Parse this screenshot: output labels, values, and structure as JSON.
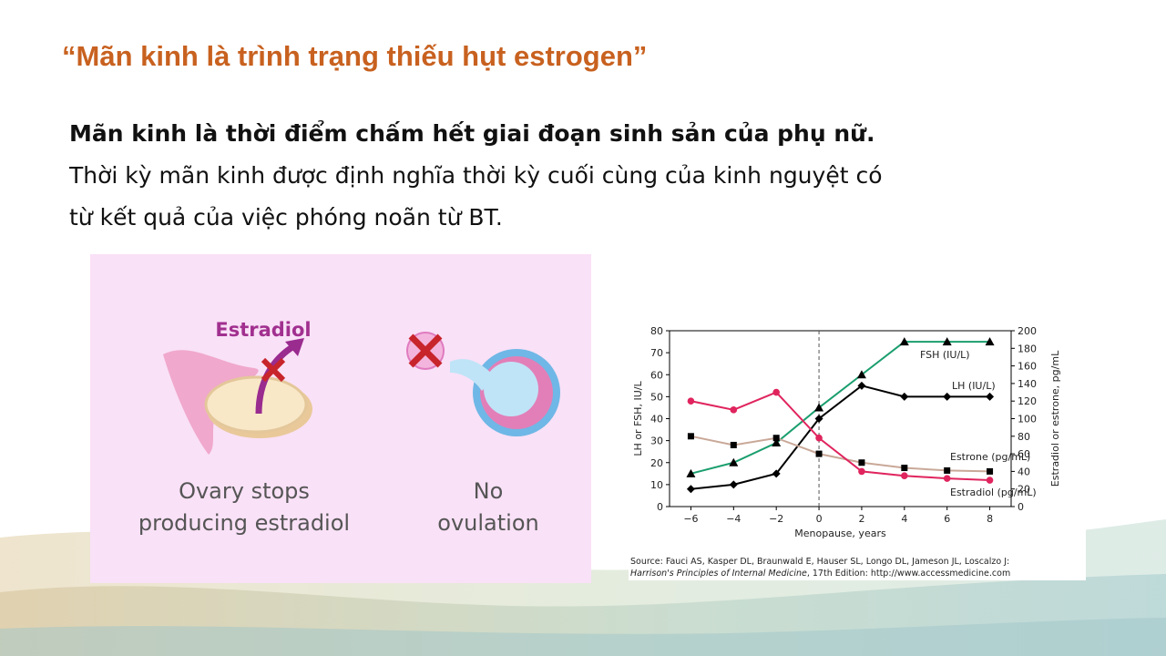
{
  "title": "“Mãn kinh là trình trạng thiếu hụt estrogen”",
  "body": {
    "bold": "Mãn kinh là thời điểm chấm hết giai đoạn sinh sản của phụ nữ.",
    "lines": [
      "Thời kỳ mãn kinh được định nghĩa thời kỳ cuối cùng của kinh nguyệt có",
      "từ kết quả của việc phóng noãn từ BT."
    ]
  },
  "illustration": {
    "hormone": "Estradiol",
    "captions": [
      [
        "Ovary stops",
        "producing estradiol"
      ],
      [
        "No",
        "ovulation"
      ]
    ]
  },
  "chart_data": {
    "type": "line",
    "x": [
      -6,
      -4,
      -2,
      0,
      2,
      4,
      6,
      8
    ],
    "xlim": [
      -7,
      9
    ],
    "xticks": [
      {
        "value": -6,
        "label": "−6"
      },
      {
        "value": -4,
        "label": "−4"
      },
      {
        "value": -2,
        "label": "−2"
      },
      0,
      2,
      4,
      6,
      8
    ],
    "xlabel": "Menopause, years",
    "ylabel": "LH or FSH, IU/L",
    "ylim": [
      0,
      80
    ],
    "yticks": [
      0,
      10,
      20,
      30,
      40,
      50,
      60,
      70,
      80
    ],
    "y2label": "Estradiol or estrone, pg/mL",
    "y2lim": [
      0,
      200
    ],
    "y2ticks": [
      0,
      20,
      40,
      60,
      80,
      100,
      120,
      140,
      160,
      180,
      200
    ],
    "series": [
      {
        "name": "FSH (IU/L)",
        "color": "#1a9e6e",
        "marker": "triangle",
        "values": [
          15,
          20,
          29,
          45,
          60,
          75,
          75,
          75
        ]
      },
      {
        "name": "LH (IU/L)",
        "color": "#000000",
        "marker": "diamond",
        "values": [
          8,
          10,
          15,
          40,
          55,
          50,
          50,
          50
        ]
      },
      {
        "name": "Estrone (pg/mL)",
        "color": "#c9a898",
        "marker": "square",
        "axis": "y2",
        "values": [
          80,
          70,
          78,
          60,
          50,
          44,
          41,
          40
        ]
      },
      {
        "name": "Estradiol (pg/mL)",
        "color": "#e0245e",
        "marker": "circle",
        "axis": "y2",
        "values": [
          120,
          110,
          130,
          78,
          40,
          35,
          32,
          30
        ]
      }
    ],
    "source": [
      "Source: Fauci AS, Kasper DL, Braunwald E, Hauser SL, Longo DL, Jameson JL, Loscalzo J:",
      "Harrison's Principles of Internal Medicine",
      ", 17th Edition: http://www.accessmedicine.com"
    ]
  }
}
